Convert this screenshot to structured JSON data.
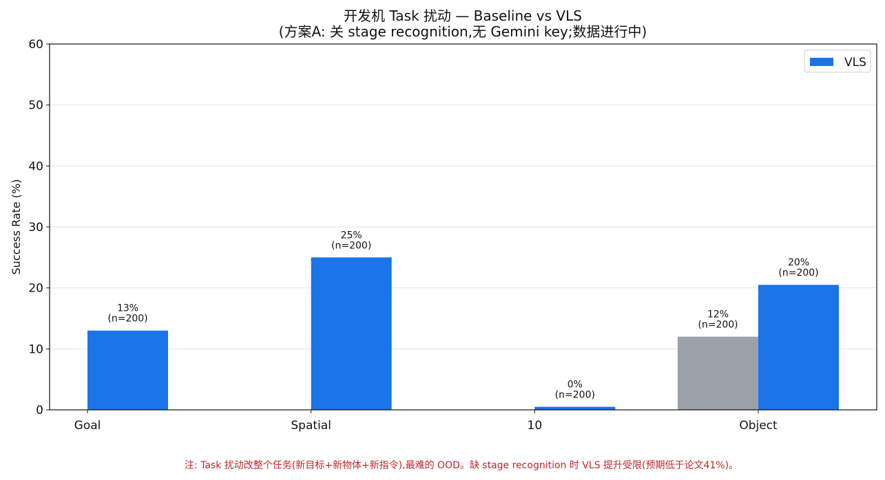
{
  "chart_data": {
    "type": "bar",
    "title": "开发机 Task 扰动 — Baseline vs VLS",
    "subtitle": "(方案A: 关 stage recognition,无 Gemini key;数据进行中)",
    "xlabel": "",
    "ylabel": "Success Rate (%)",
    "ylim": [
      0,
      60
    ],
    "yticks": [
      "0",
      "10",
      "20",
      "30",
      "40",
      "50",
      "60"
    ],
    "grid": true,
    "legend_position": "top-right",
    "categories": [
      "Goal",
      "Spatial",
      "10",
      "Object"
    ],
    "series": [
      {
        "key": "baseline",
        "color": "#9ca0a8",
        "values": [
          null,
          null,
          null,
          12
        ],
        "labels": [
          null,
          null,
          null,
          "12%"
        ],
        "ns": [
          null,
          null,
          null,
          "(n=200)"
        ]
      },
      {
        "key": "vls",
        "name": "VLS",
        "color": "#1b74e8",
        "values": [
          13,
          25,
          0.5,
          20.5
        ],
        "labels": [
          "13%",
          "25%",
          "0%",
          "20%"
        ],
        "ns": [
          "(n=200)",
          "(n=200)",
          "(n=200)",
          "(n=200)"
        ]
      }
    ],
    "note": "注: Task 扰动改整个任务(新目标+新物体+新指令),最难的 OOD。缺 stage recognition 时 VLS 提升受限(预期低于论文41%)。"
  }
}
